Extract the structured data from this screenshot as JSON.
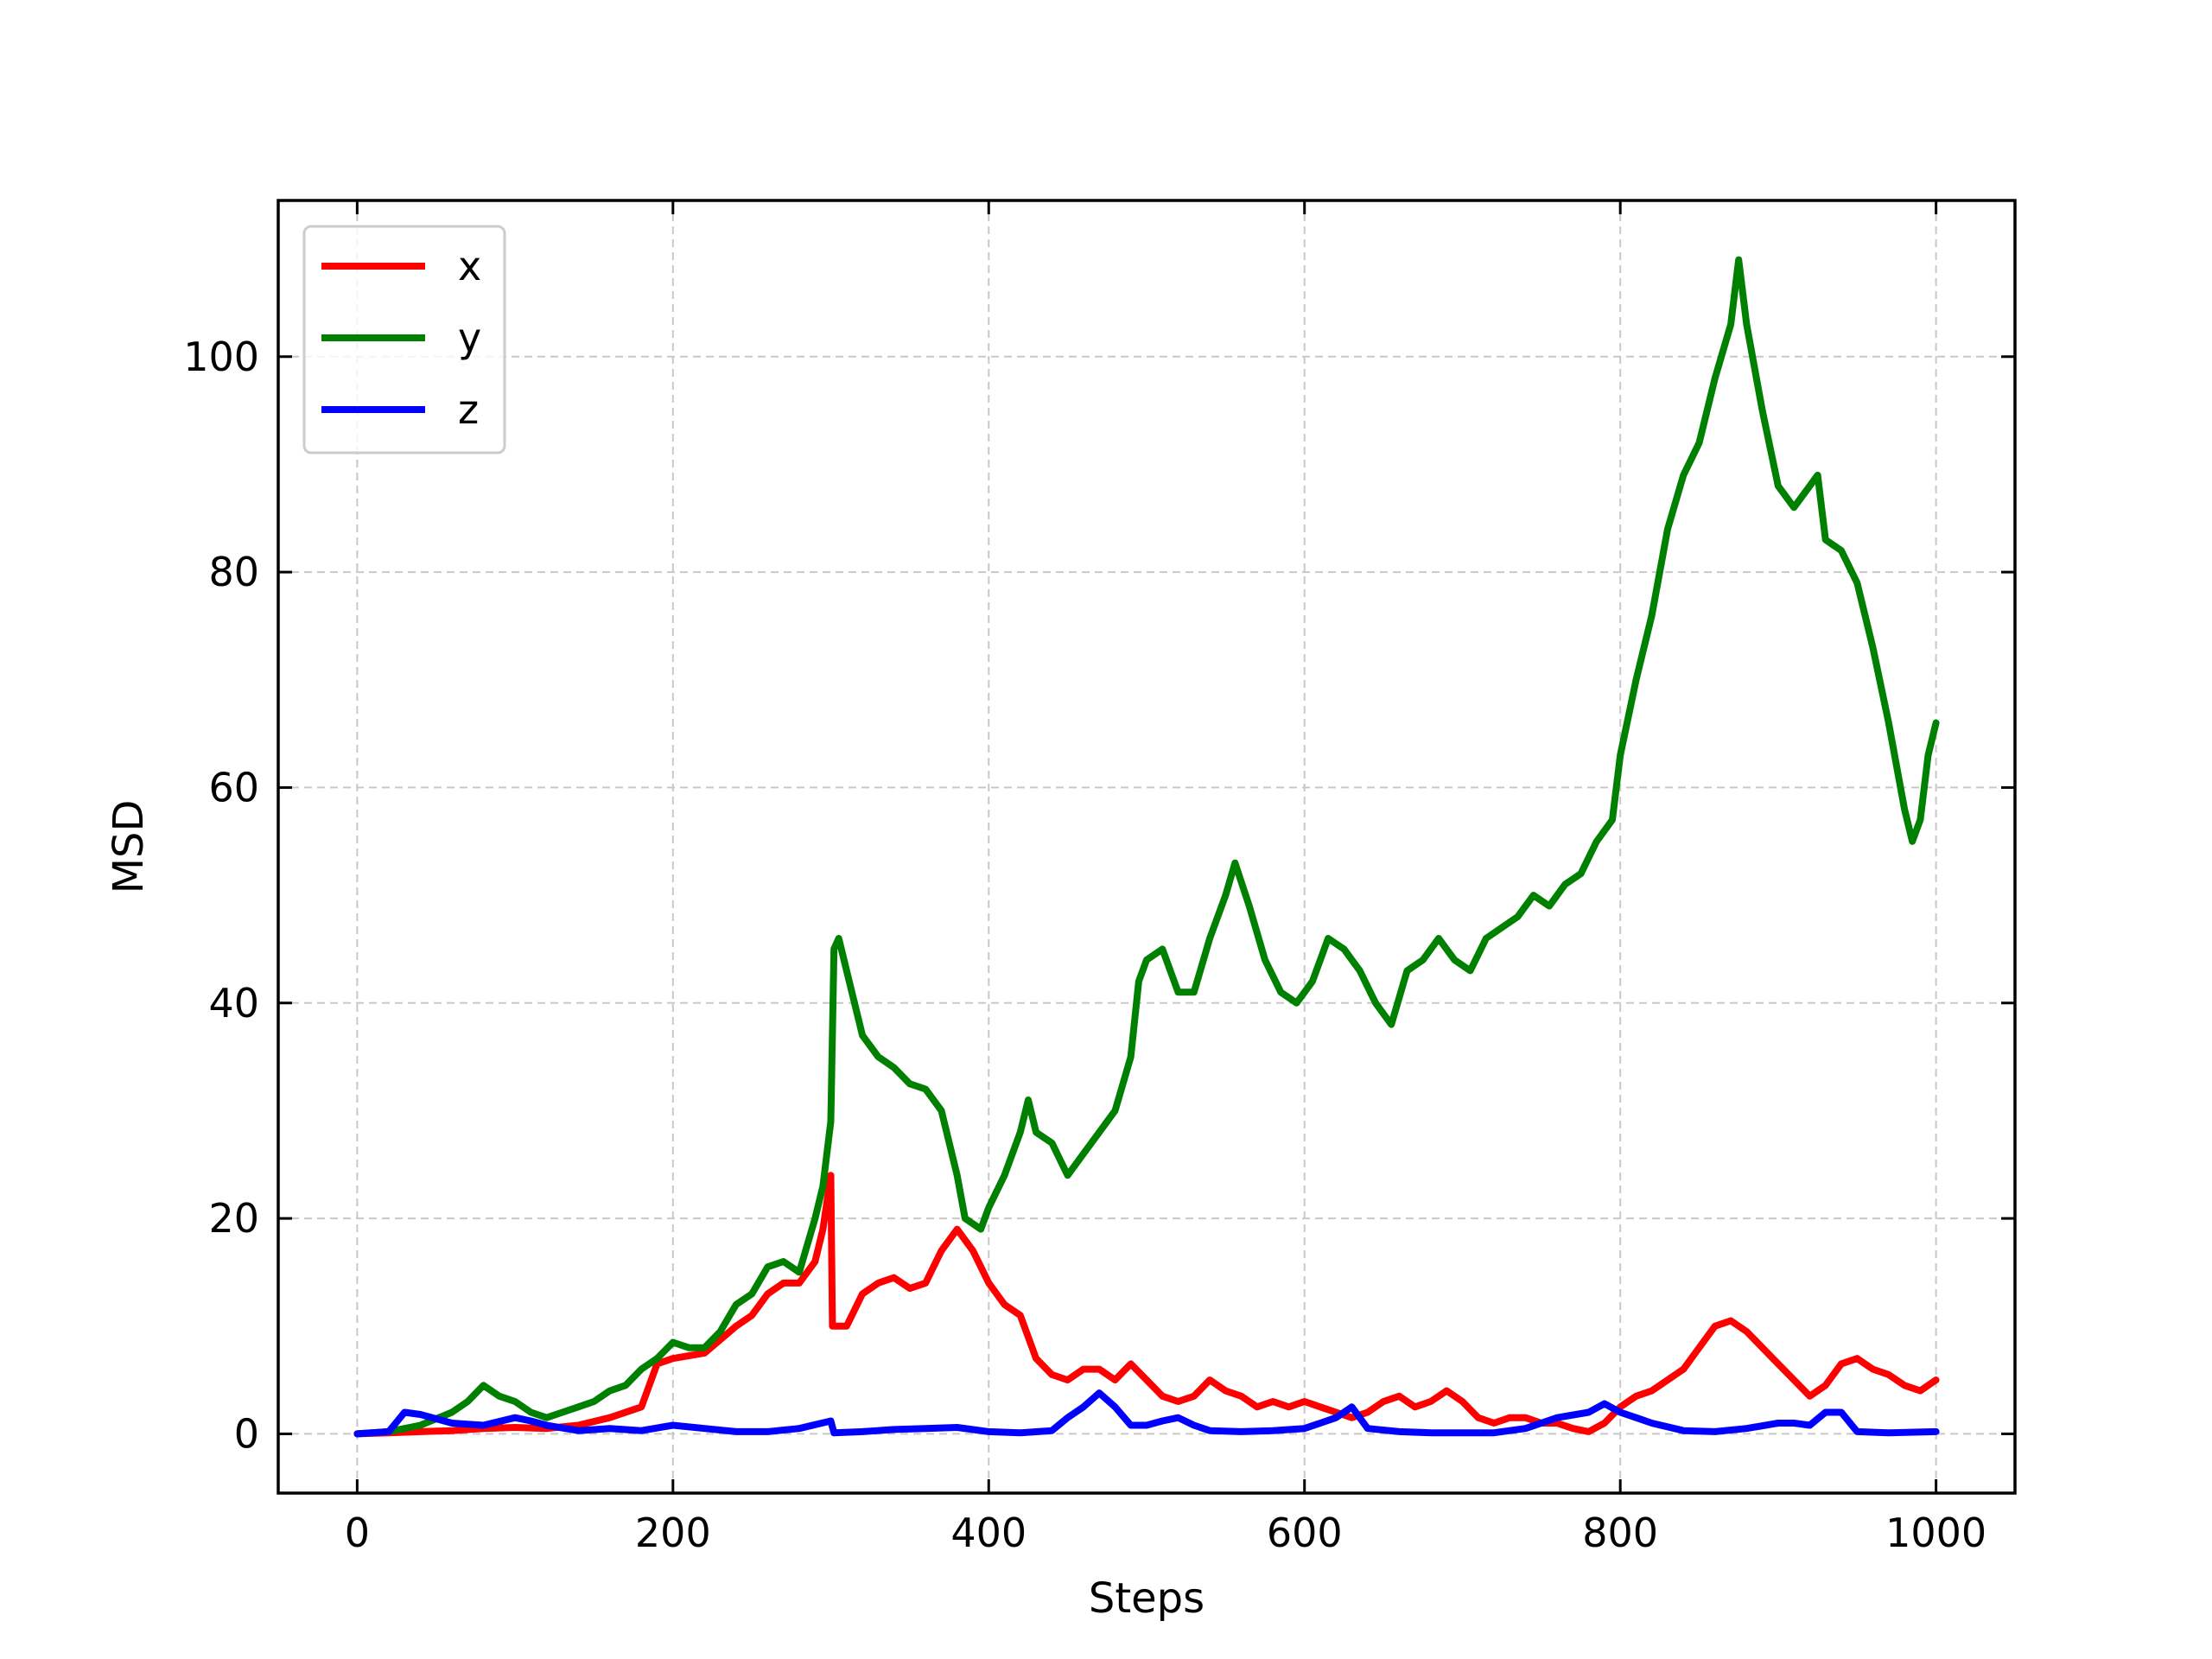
{
  "chart_data": {
    "type": "line",
    "title": "",
    "xlabel": "Steps",
    "ylabel": "MSD",
    "xlim": [
      -50,
      1050
    ],
    "ylim": [
      -5.5,
      114.5
    ],
    "xticks": [
      0,
      200,
      400,
      600,
      800,
      1000
    ],
    "yticks": [
      0,
      20,
      40,
      60,
      80,
      100
    ],
    "grid": true,
    "legend_position": "top-left",
    "series": [
      {
        "name": "x",
        "color": "#ff0000",
        "points": [
          [
            0,
            0
          ],
          [
            20,
            0.1
          ],
          [
            40,
            0.2
          ],
          [
            60,
            0.3
          ],
          [
            80,
            0.5
          ],
          [
            100,
            0.6
          ],
          [
            120,
            0.5
          ],
          [
            140,
            0.8
          ],
          [
            160,
            1.5
          ],
          [
            180,
            2.5
          ],
          [
            190,
            6.5
          ],
          [
            200,
            7
          ],
          [
            220,
            7.5
          ],
          [
            240,
            10
          ],
          [
            250,
            11
          ],
          [
            260,
            13
          ],
          [
            270,
            14
          ],
          [
            280,
            14
          ],
          [
            290,
            16
          ],
          [
            295,
            19
          ],
          [
            300,
            24
          ],
          [
            301,
            10
          ],
          [
            310,
            10
          ],
          [
            320,
            13
          ],
          [
            330,
            14
          ],
          [
            340,
            14.5
          ],
          [
            350,
            13.5
          ],
          [
            360,
            14
          ],
          [
            370,
            17
          ],
          [
            380,
            19
          ],
          [
            390,
            17
          ],
          [
            400,
            14
          ],
          [
            410,
            12
          ],
          [
            420,
            11
          ],
          [
            430,
            7
          ],
          [
            440,
            5.5
          ],
          [
            450,
            5
          ],
          [
            460,
            6
          ],
          [
            470,
            6
          ],
          [
            480,
            5
          ],
          [
            490,
            6.5
          ],
          [
            500,
            5
          ],
          [
            510,
            3.5
          ],
          [
            520,
            3
          ],
          [
            530,
            3.5
          ],
          [
            540,
            5
          ],
          [
            550,
            4
          ],
          [
            560,
            3.5
          ],
          [
            570,
            2.5
          ],
          [
            580,
            3
          ],
          [
            590,
            2.5
          ],
          [
            600,
            3
          ],
          [
            610,
            2.5
          ],
          [
            620,
            2
          ],
          [
            630,
            1.5
          ],
          [
            640,
            2
          ],
          [
            650,
            3
          ],
          [
            660,
            3.5
          ],
          [
            670,
            2.5
          ],
          [
            680,
            3
          ],
          [
            690,
            4
          ],
          [
            700,
            3
          ],
          [
            710,
            1.5
          ],
          [
            720,
            1
          ],
          [
            730,
            1.5
          ],
          [
            740,
            1.5
          ],
          [
            750,
            1
          ],
          [
            760,
            1
          ],
          [
            770,
            0.5
          ],
          [
            780,
            0.2
          ],
          [
            790,
            1
          ],
          [
            800,
            2.5
          ],
          [
            810,
            3.5
          ],
          [
            820,
            4
          ],
          [
            830,
            5
          ],
          [
            840,
            6
          ],
          [
            850,
            8
          ],
          [
            860,
            10
          ],
          [
            870,
            10.5
          ],
          [
            880,
            9.5
          ],
          [
            890,
            8
          ],
          [
            900,
            6.5
          ],
          [
            910,
            5
          ],
          [
            920,
            3.5
          ],
          [
            930,
            4.5
          ],
          [
            940,
            6.5
          ],
          [
            950,
            7
          ],
          [
            960,
            6
          ],
          [
            970,
            5.5
          ],
          [
            980,
            4.5
          ],
          [
            990,
            4
          ],
          [
            1000,
            5
          ]
        ]
      },
      {
        "name": "y",
        "color": "#008000",
        "points": [
          [
            0,
            0
          ],
          [
            20,
            0.2
          ],
          [
            40,
            0.8
          ],
          [
            60,
            2
          ],
          [
            70,
            3
          ],
          [
            80,
            4.5
          ],
          [
            90,
            3.5
          ],
          [
            100,
            3
          ],
          [
            110,
            2
          ],
          [
            120,
            1.5
          ],
          [
            130,
            2
          ],
          [
            140,
            2.5
          ],
          [
            150,
            3
          ],
          [
            160,
            4
          ],
          [
            170,
            4.5
          ],
          [
            180,
            6
          ],
          [
            190,
            7
          ],
          [
            200,
            8.5
          ],
          [
            210,
            8
          ],
          [
            220,
            8
          ],
          [
            230,
            9.5
          ],
          [
            240,
            12
          ],
          [
            250,
            13
          ],
          [
            260,
            15.5
          ],
          [
            270,
            16
          ],
          [
            280,
            15
          ],
          [
            290,
            20
          ],
          [
            295,
            23
          ],
          [
            300,
            29
          ],
          [
            302,
            45
          ],
          [
            305,
            46
          ],
          [
            310,
            43
          ],
          [
            320,
            37
          ],
          [
            330,
            35
          ],
          [
            340,
            34
          ],
          [
            350,
            32.5
          ],
          [
            360,
            32
          ],
          [
            370,
            30
          ],
          [
            380,
            24
          ],
          [
            385,
            20
          ],
          [
            395,
            19
          ],
          [
            400,
            21
          ],
          [
            410,
            24
          ],
          [
            420,
            28
          ],
          [
            425,
            31
          ],
          [
            430,
            28
          ],
          [
            440,
            27
          ],
          [
            450,
            24
          ],
          [
            460,
            26
          ],
          [
            470,
            28
          ],
          [
            480,
            30
          ],
          [
            490,
            35
          ],
          [
            495,
            42
          ],
          [
            500,
            44
          ],
          [
            510,
            45
          ],
          [
            520,
            41
          ],
          [
            530,
            41
          ],
          [
            540,
            46
          ],
          [
            550,
            50
          ],
          [
            556,
            53
          ],
          [
            565,
            49
          ],
          [
            575,
            44
          ],
          [
            585,
            41
          ],
          [
            595,
            40
          ],
          [
            605,
            42
          ],
          [
            615,
            46
          ],
          [
            625,
            45
          ],
          [
            635,
            43
          ],
          [
            645,
            40
          ],
          [
            655,
            38
          ],
          [
            665,
            43
          ],
          [
            675,
            44
          ],
          [
            685,
            46
          ],
          [
            695,
            44
          ],
          [
            705,
            43
          ],
          [
            715,
            46
          ],
          [
            725,
            47
          ],
          [
            735,
            48
          ],
          [
            745,
            50
          ],
          [
            755,
            49
          ],
          [
            765,
            51
          ],
          [
            775,
            52
          ],
          [
            785,
            55
          ],
          [
            795,
            57
          ],
          [
            800,
            63
          ],
          [
            810,
            70
          ],
          [
            820,
            76
          ],
          [
            830,
            84
          ],
          [
            840,
            89
          ],
          [
            850,
            92
          ],
          [
            860,
            98
          ],
          [
            870,
            103
          ],
          [
            875,
            109
          ],
          [
            880,
            103
          ],
          [
            890,
            95
          ],
          [
            900,
            88
          ],
          [
            910,
            86
          ],
          [
            920,
            88
          ],
          [
            925,
            89
          ],
          [
            930,
            83
          ],
          [
            940,
            82
          ],
          [
            950,
            79
          ],
          [
            960,
            73
          ],
          [
            970,
            66
          ],
          [
            980,
            58
          ],
          [
            985,
            55
          ],
          [
            990,
            57
          ],
          [
            995,
            63
          ],
          [
            1000,
            66
          ]
        ]
      },
      {
        "name": "z",
        "color": "#0000ff",
        "points": [
          [
            0,
            0
          ],
          [
            20,
            0.2
          ],
          [
            30,
            2
          ],
          [
            40,
            1.8
          ],
          [
            60,
            1
          ],
          [
            80,
            0.8
          ],
          [
            100,
            1.5
          ],
          [
            110,
            1.2
          ],
          [
            120,
            0.8
          ],
          [
            140,
            0.3
          ],
          [
            160,
            0.5
          ],
          [
            180,
            0.3
          ],
          [
            200,
            0.8
          ],
          [
            220,
            0.5
          ],
          [
            240,
            0.2
          ],
          [
            260,
            0.2
          ],
          [
            280,
            0.5
          ],
          [
            300,
            1.2
          ],
          [
            302,
            0.1
          ],
          [
            320,
            0.2
          ],
          [
            340,
            0.4
          ],
          [
            360,
            0.5
          ],
          [
            380,
            0.6
          ],
          [
            400,
            0.2
          ],
          [
            420,
            0.1
          ],
          [
            440,
            0.3
          ],
          [
            450,
            1.5
          ],
          [
            460,
            2.5
          ],
          [
            470,
            3.8
          ],
          [
            480,
            2.5
          ],
          [
            490,
            0.8
          ],
          [
            500,
            0.8
          ],
          [
            510,
            1.2
          ],
          [
            520,
            1.5
          ],
          [
            530,
            0.8
          ],
          [
            540,
            0.3
          ],
          [
            560,
            0.2
          ],
          [
            580,
            0.3
          ],
          [
            600,
            0.5
          ],
          [
            610,
            1
          ],
          [
            620,
            1.5
          ],
          [
            630,
            2.5
          ],
          [
            640,
            0.5
          ],
          [
            660,
            0.2
          ],
          [
            680,
            0.1
          ],
          [
            700,
            0.1
          ],
          [
            720,
            0.1
          ],
          [
            740,
            0.5
          ],
          [
            760,
            1.5
          ],
          [
            780,
            2
          ],
          [
            790,
            2.8
          ],
          [
            800,
            2
          ],
          [
            810,
            1.5
          ],
          [
            820,
            1
          ],
          [
            840,
            0.3
          ],
          [
            860,
            0.2
          ],
          [
            880,
            0.5
          ],
          [
            900,
            1
          ],
          [
            910,
            1
          ],
          [
            920,
            0.8
          ],
          [
            930,
            2
          ],
          [
            940,
            2
          ],
          [
            950,
            0.2
          ],
          [
            970,
            0.1
          ],
          [
            1000,
            0.2
          ]
        ]
      }
    ]
  }
}
